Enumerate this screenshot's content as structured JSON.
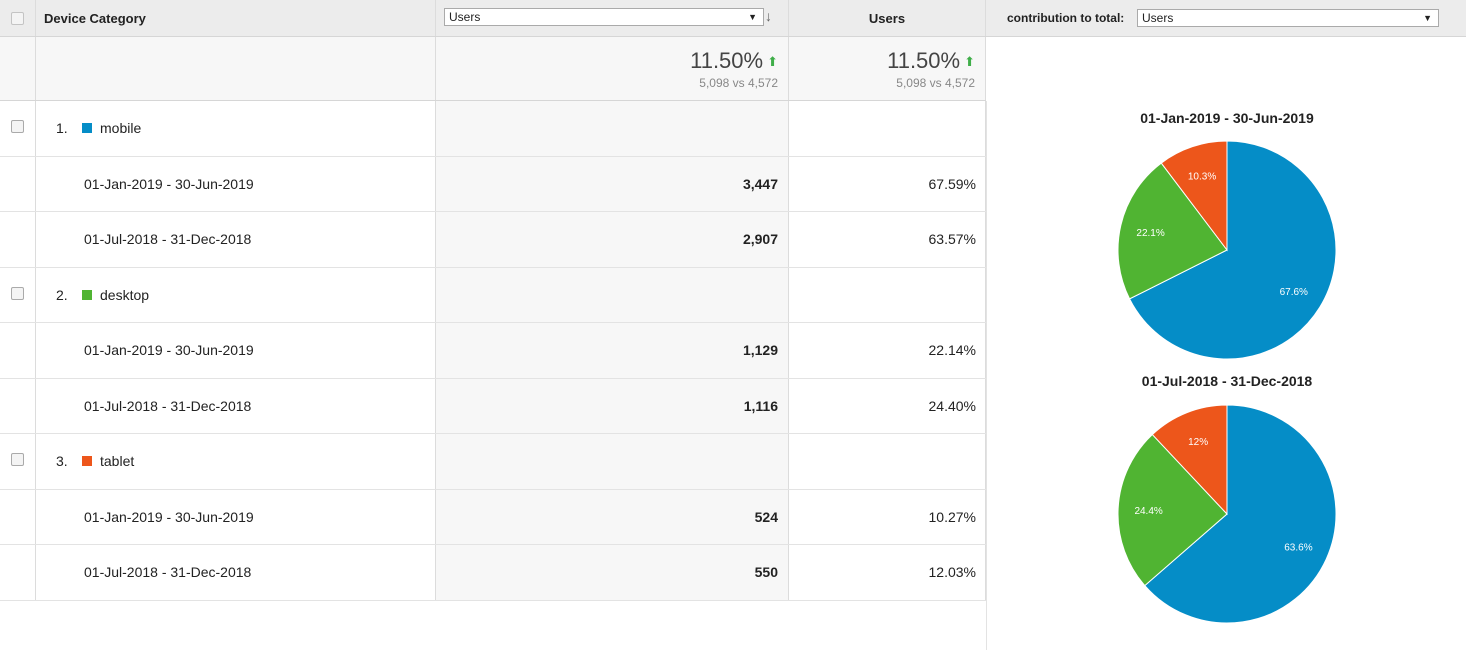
{
  "header": {
    "dimension_label": "Device Category",
    "metric_select": "Users",
    "metric_column": "Users",
    "contribution_label": "contribution to total:",
    "contribution_select": "Users"
  },
  "totals": {
    "metric_pct": "11.50%",
    "metric_compare": "5,098 vs 4,572",
    "users_pct": "11.50%",
    "users_compare": "5,098 vs 4,572"
  },
  "colors": {
    "mobile": "#058dc7",
    "desktop": "#50b432",
    "tablet": "#ed561b",
    "up": "#3fae49"
  },
  "groups": [
    {
      "index": "1.",
      "name": "mobile",
      "color": "#058dc7",
      "rows": [
        {
          "period": "01-Jan-2019 - 30-Jun-2019",
          "value": "3,447",
          "pct": "67.59%"
        },
        {
          "period": "01-Jul-2018 - 31-Dec-2018",
          "value": "2,907",
          "pct": "63.57%"
        }
      ]
    },
    {
      "index": "2.",
      "name": "desktop",
      "color": "#50b432",
      "rows": [
        {
          "period": "01-Jan-2019 - 30-Jun-2019",
          "value": "1,129",
          "pct": "22.14%"
        },
        {
          "period": "01-Jul-2018 - 31-Dec-2018",
          "value": "1,116",
          "pct": "24.40%"
        }
      ]
    },
    {
      "index": "3.",
      "name": "tablet",
      "color": "#ed561b",
      "rows": [
        {
          "period": "01-Jan-2019 - 30-Jun-2019",
          "value": "524",
          "pct": "10.27%"
        },
        {
          "period": "01-Jul-2018 - 31-Dec-2018",
          "value": "550",
          "pct": "12.03%"
        }
      ]
    }
  ],
  "pies": [
    {
      "title": "01-Jan-2019 - 30-Jun-2019",
      "slices": [
        {
          "name": "mobile",
          "value": 67.6,
          "label": "67.6%",
          "color": "#058dc7"
        },
        {
          "name": "desktop",
          "value": 22.1,
          "label": "22.1%",
          "color": "#50b432"
        },
        {
          "name": "tablet",
          "value": 10.3,
          "label": "10.3%",
          "color": "#ed561b"
        }
      ]
    },
    {
      "title": "01-Jul-2018 - 31-Dec-2018",
      "slices": [
        {
          "name": "mobile",
          "value": 63.6,
          "label": "63.6%",
          "color": "#058dc7"
        },
        {
          "name": "desktop",
          "value": 24.4,
          "label": "24.4%",
          "color": "#50b432"
        },
        {
          "name": "tablet",
          "value": 12,
          "label": "12%",
          "color": "#ed561b"
        }
      ]
    }
  ]
}
